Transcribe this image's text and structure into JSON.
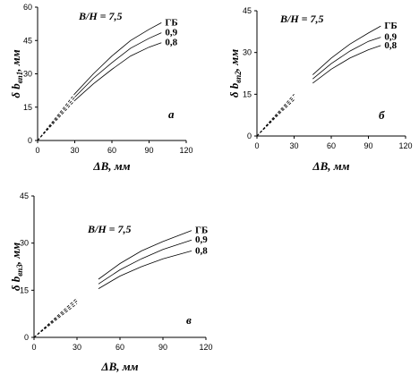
{
  "chart_data": [
    {
      "type": "line",
      "panel_label": "а",
      "annotation": "B/H = 7,5",
      "xlabel": "ΔB, мм",
      "ylabel": "δ b₍в1₎, мм",
      "ylabel_main": "δ b",
      "ylabel_sub": "вп1",
      "ylabel_unit": ", мм",
      "xlim": [
        0,
        120
      ],
      "ylim": [
        0,
        60
      ],
      "xticks": [
        0,
        30,
        60,
        90,
        120
      ],
      "yticks": [
        0,
        15,
        30,
        45,
        60
      ],
      "grid": false,
      "legend": "labels at line ends",
      "series": [
        {
          "name": "ГБ",
          "x": [
            0,
            10,
            20,
            30,
            45,
            60,
            75,
            90,
            100
          ],
          "y": [
            0,
            7,
            14,
            21,
            30,
            38,
            45,
            50,
            53
          ]
        },
        {
          "name": "0,9",
          "x": [
            0,
            10,
            20,
            30,
            45,
            60,
            75,
            90,
            100
          ],
          "y": [
            0,
            6.5,
            13,
            19.5,
            28,
            35,
            41.5,
            46,
            48.5
          ]
        },
        {
          "name": "0,8",
          "x": [
            0,
            10,
            20,
            30,
            45,
            60,
            75,
            90,
            100
          ],
          "y": [
            0,
            6,
            12,
            18,
            25.5,
            32,
            38,
            42,
            44
          ]
        }
      ],
      "dashed_until_x": 30
    },
    {
      "type": "line",
      "panel_label": "б",
      "annotation": "B/H = 7,5",
      "xlabel": "ΔB, мм",
      "ylabel": "δ b₍в2₎, мм",
      "ylabel_main": "δ b",
      "ylabel_sub": "вп2",
      "ylabel_unit": ", мм",
      "xlim": [
        0,
        120
      ],
      "ylim": [
        0,
        45
      ],
      "xticks": [
        0,
        30,
        60,
        90,
        120
      ],
      "yticks": [
        0,
        15,
        30,
        45
      ],
      "grid": false,
      "legend": "labels at line ends",
      "series": [
        {
          "name": "ГБ",
          "x": [
            0,
            10,
            20,
            30,
            45,
            60,
            75,
            90,
            100
          ],
          "y": [
            0,
            5,
            10,
            15,
            22,
            28,
            33,
            37,
            39.5
          ]
        },
        {
          "name": "0,9",
          "x": [
            0,
            10,
            20,
            30,
            45,
            60,
            75,
            90,
            100
          ],
          "y": [
            0,
            4.7,
            9.4,
            14,
            20.5,
            26,
            30.5,
            34,
            35.5
          ]
        },
        {
          "name": "0,8",
          "x": [
            0,
            10,
            20,
            30,
            45,
            60,
            75,
            90,
            100
          ],
          "y": [
            0,
            4.4,
            8.8,
            13,
            19,
            24,
            28,
            31,
            32.5
          ]
        }
      ],
      "dashed_until_x": 35
    },
    {
      "type": "line",
      "panel_label": "в",
      "annotation": "B/H = 7,5",
      "xlabel": "ΔB, мм",
      "ylabel": "δ b₍в3₎, мм",
      "ylabel_main": "δ b",
      "ylabel_sub": "вп3",
      "ylabel_unit": ", мм",
      "xlim": [
        0,
        120
      ],
      "ylim": [
        0,
        45
      ],
      "xticks": [
        0,
        30,
        60,
        90,
        120
      ],
      "yticks": [
        0,
        15,
        30,
        45
      ],
      "grid": false,
      "legend": "labels at line ends",
      "series": [
        {
          "name": "ГБ",
          "x": [
            0,
            10,
            20,
            30,
            45,
            60,
            75,
            90,
            110
          ],
          "y": [
            0,
            4.2,
            8.4,
            12.5,
            18.5,
            23.5,
            27.5,
            30.5,
            34
          ]
        },
        {
          "name": "0,9",
          "x": [
            0,
            10,
            20,
            30,
            45,
            60,
            75,
            90,
            110
          ],
          "y": [
            0,
            3.9,
            7.8,
            11.6,
            17,
            21.5,
            25,
            28,
            31
          ]
        },
        {
          "name": "0,8",
          "x": [
            0,
            10,
            20,
            30,
            45,
            60,
            75,
            90,
            110
          ],
          "y": [
            0,
            3.6,
            7.2,
            10.7,
            15.5,
            19.5,
            22.5,
            25,
            27.5
          ]
        }
      ],
      "dashed_until_x": 40
    }
  ]
}
